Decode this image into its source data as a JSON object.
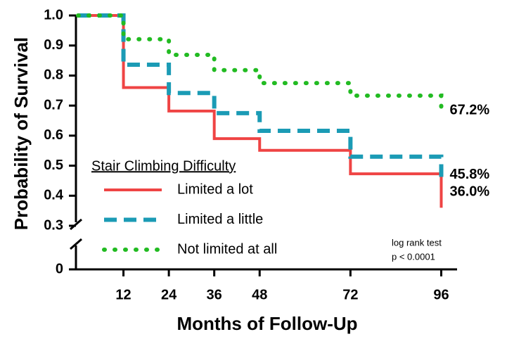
{
  "chart_data": {
    "type": "step",
    "xlabel": "Months of Follow-Up",
    "ylabel": "Probability of Survival",
    "x": [
      0,
      12,
      24,
      36,
      48,
      72,
      96
    ],
    "xlim": [
      0,
      100
    ],
    "xticks": [
      12,
      24,
      36,
      48,
      72,
      96
    ],
    "ylim": [
      0,
      1.0
    ],
    "yticks": [
      0,
      0.3,
      0.4,
      0.5,
      0.6,
      0.7,
      0.8,
      0.9,
      {
        "value": 1.0,
        "label": "1.0"
      }
    ],
    "y_break": [
      0,
      0.3
    ],
    "legend_title": "Stair Climbing Difficulty",
    "legend": "lower left",
    "annotation": [
      "log rank test",
      "p < 0.0001"
    ],
    "series": [
      {
        "name": "Limited a lot",
        "color": "#ef4444",
        "style": "solid",
        "values": [
          1.0,
          0.76,
          0.682,
          0.59,
          0.551,
          0.473,
          0.36
        ],
        "value_labels": [
          null,
          null,
          null,
          null,
          null,
          null,
          "36.0%"
        ]
      },
      {
        "name": "Limited a little",
        "color": "#1b9bb5",
        "style": "dashed",
        "values": [
          1.0,
          0.836,
          0.742,
          0.675,
          0.616,
          0.53,
          0.458
        ],
        "value_labels": [
          null,
          null,
          null,
          null,
          null,
          null,
          "45.8%"
        ]
      },
      {
        "name": "Not limited at all",
        "color": "#22bb22",
        "style": "dotted",
        "values": [
          1.0,
          0.921,
          0.869,
          0.818,
          0.775,
          0.733,
          0.672
        ],
        "value_labels": [
          null,
          null,
          null,
          null,
          null,
          null,
          "67.2%"
        ]
      }
    ]
  }
}
